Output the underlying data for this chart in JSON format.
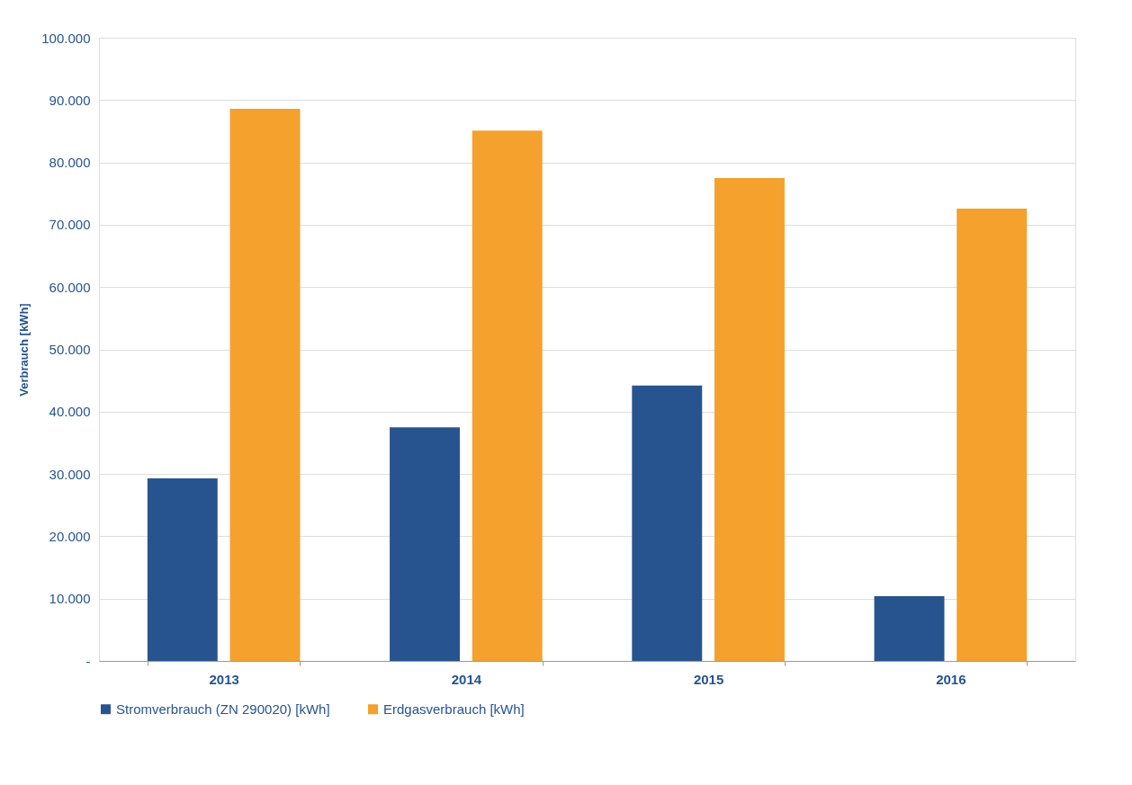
{
  "chart_data": {
    "type": "bar",
    "ylabel": "Verbrauch [kWh]",
    "categories": [
      "2013",
      "2014",
      "2015",
      "2016"
    ],
    "series": [
      {
        "name": "Stromverbrauch (ZN 290020) [kWh]",
        "color": "#27548f",
        "values": [
          29300,
          37500,
          44200,
          10400
        ]
      },
      {
        "name": "Erdgasverbrauch [kWh]",
        "color": "#f4a12d",
        "values": [
          88600,
          85100,
          77500,
          72600
        ]
      }
    ],
    "ylim": [
      0,
      100000
    ],
    "yticks": [
      {
        "value": 0,
        "label": "-"
      },
      {
        "value": 10000,
        "label": "10.000"
      },
      {
        "value": 20000,
        "label": "20.000"
      },
      {
        "value": 30000,
        "label": "30.000"
      },
      {
        "value": 40000,
        "label": "40.000"
      },
      {
        "value": 50000,
        "label": "50.000"
      },
      {
        "value": 60000,
        "label": "60.000"
      },
      {
        "value": 70000,
        "label": "70.000"
      },
      {
        "value": 80000,
        "label": "80.000"
      },
      {
        "value": 90000,
        "label": "90.000"
      },
      {
        "value": 100000,
        "label": "100.000"
      }
    ],
    "grid": "y",
    "legend": "bottom"
  }
}
